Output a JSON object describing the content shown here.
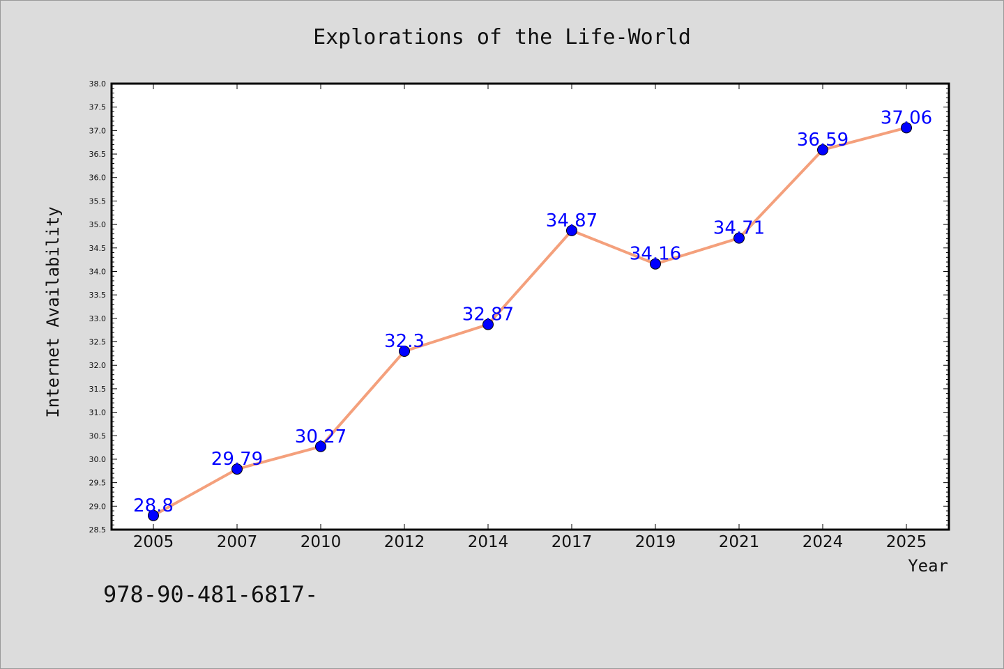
{
  "chart_data": {
    "type": "line",
    "title": "Explorations of the Life-World",
    "xlabel": "Year",
    "ylabel": "Internet Availability",
    "categories": [
      "2005",
      "2007",
      "2010",
      "2012",
      "2014",
      "2017",
      "2019",
      "2021",
      "2024",
      "2025"
    ],
    "series": [
      {
        "values": [
          28.8,
          29.79,
          30.27,
          32.3,
          32.87,
          34.87,
          34.16,
          34.71,
          36.59,
          37.06
        ],
        "labels": [
          "28.8",
          "29.79",
          "30.27",
          "32.3",
          "32.87",
          "34.87",
          "34.16",
          "34.71",
          "36.59",
          "37.06"
        ]
      }
    ],
    "ylim": [
      28.5,
      38.0
    ],
    "yticks": [
      "28.5",
      "29.0",
      "29.5",
      "30.0",
      "30.5",
      "31.0",
      "31.5",
      "32.0",
      "32.5",
      "33.0",
      "33.5",
      "34.0",
      "34.5",
      "35.0",
      "35.5",
      "36.0",
      "36.5",
      "37.0",
      "37.5",
      "38.0"
    ],
    "grid": false,
    "colors": {
      "line": "#f4a07c",
      "marker": "#0000ff",
      "labels": "#0000ff",
      "background": "#dcdcdc",
      "plot": "#ffffff"
    }
  },
  "annotation": "978-90-481-6817-"
}
